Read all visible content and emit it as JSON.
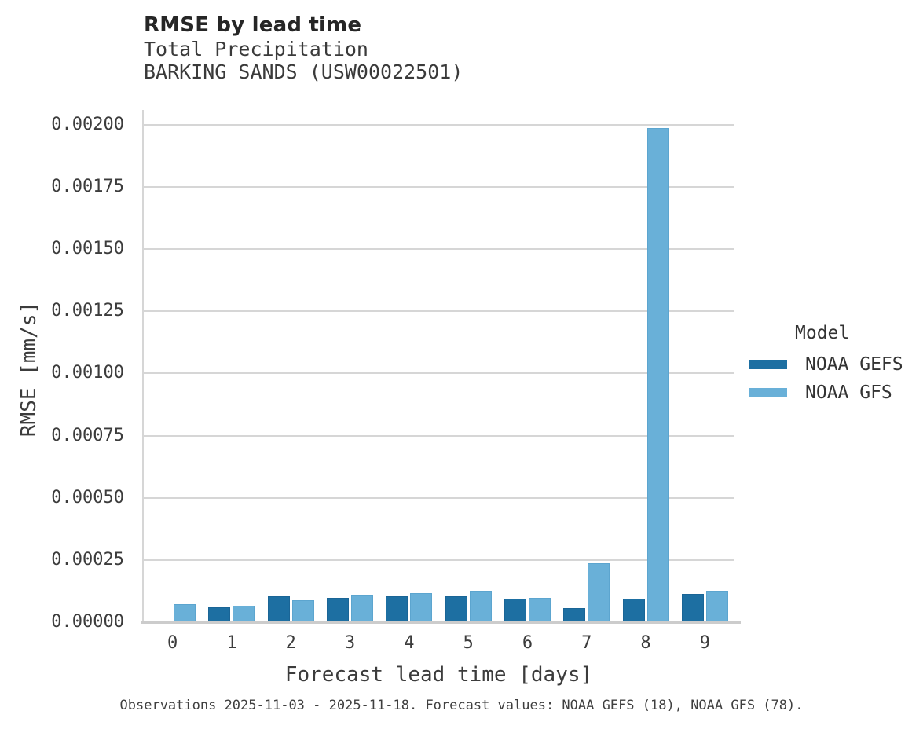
{
  "header": {
    "title": "RMSE by lead time",
    "subtitle_variable": "Total Precipitation",
    "subtitle_station": "BARKING SANDS (USW00022501)"
  },
  "chart_data": {
    "type": "bar",
    "title": "RMSE by lead time",
    "subtitle": [
      "Total Precipitation",
      "BARKING SANDS (USW00022501)"
    ],
    "categories": [
      "0",
      "1",
      "2",
      "3",
      "4",
      "5",
      "6",
      "7",
      "8",
      "9"
    ],
    "series": [
      {
        "name": "NOAA GEFS",
        "color": "#1d6fa2",
        "edge_color": "#1a6596",
        "values": [
          null,
          5.9e-05,
          0.000103,
          9.9e-05,
          0.000104,
          0.000105,
          9.4e-05,
          5.8e-05,
          9.4e-05,
          0.000115
        ]
      },
      {
        "name": "NOAA GFS",
        "color": "#69b0d8",
        "edge_color": "#5ca5cf",
        "values": [
          7.4e-05,
          6.6e-05,
          8.8e-05,
          0.000106,
          0.000118,
          0.000125,
          9.7e-05,
          0.000236,
          0.001988,
          0.000126
        ]
      }
    ],
    "xlabel": "Forecast lead time [days]",
    "ylabel": "RMSE [mm/s]",
    "ylim": [
      0,
      0.00206
    ],
    "yticks": [
      {
        "value": 0.0,
        "label": "0.00000"
      },
      {
        "value": 0.00025,
        "label": "0.00025"
      },
      {
        "value": 0.0005,
        "label": "0.00050"
      },
      {
        "value": 0.00075,
        "label": "0.00075"
      },
      {
        "value": 0.001,
        "label": "0.00100"
      },
      {
        "value": 0.00125,
        "label": "0.00125"
      },
      {
        "value": 0.0015,
        "label": "0.00150"
      },
      {
        "value": 0.00175,
        "label": "0.00175"
      },
      {
        "value": 0.002,
        "label": "0.00200"
      }
    ],
    "grid": true,
    "legend_title": "Model",
    "legend_position": "right"
  },
  "caption": {
    "text": "Observations 2025-11-03 - 2025-11-18. Forecast values: NOAA GEFS (18), NOAA GFS (78)."
  }
}
